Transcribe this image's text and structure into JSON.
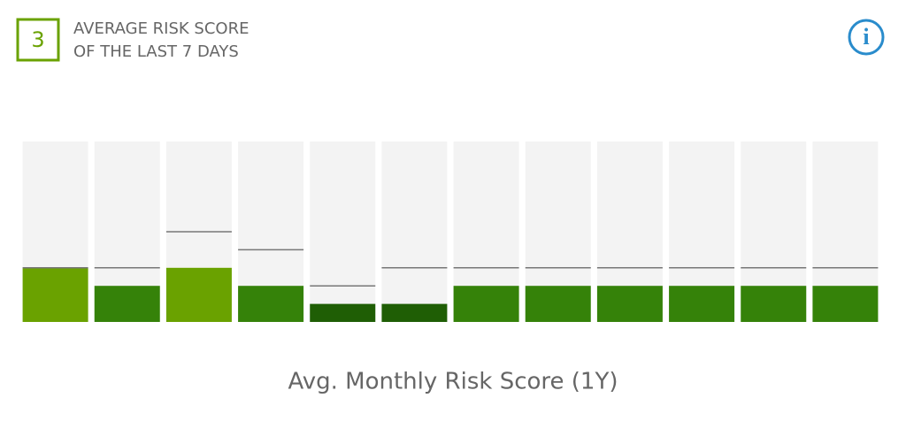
{
  "header": {
    "score": 3,
    "title_lines": [
      "AVERAGE RISK SCORE",
      "OF THE LAST 7 DAYS"
    ],
    "info_icon": "i"
  },
  "chart_data": {
    "type": "bar",
    "x_label": "Avg. Monthly Risk Score (1Y)",
    "categories": [
      null,
      null,
      null,
      null,
      null,
      null,
      null,
      null,
      null,
      null,
      null,
      null
    ],
    "values": [
      3,
      2,
      3,
      2,
      1,
      1,
      2,
      2,
      2,
      2,
      2,
      2
    ],
    "colors": [
      "#6aa200",
      "#358209",
      "#6aa200",
      "#358209",
      "#1f5e05",
      "#1f5e05",
      "#358209",
      "#358209",
      "#358209",
      "#358209",
      "#358209",
      "#358209"
    ],
    "marker_values": [
      3,
      3,
      5,
      4,
      2,
      3,
      3,
      3,
      3,
      3,
      3,
      3
    ],
    "marker_color": "#777777",
    "background_color": "#f3f3f3",
    "ylim": [
      0,
      10
    ]
  }
}
